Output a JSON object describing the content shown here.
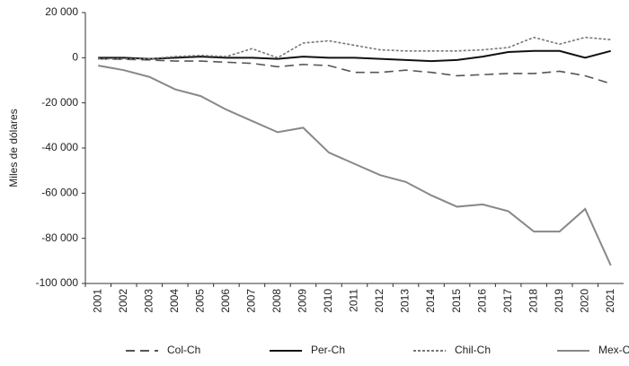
{
  "chart_data": {
    "type": "line",
    "y_label": "Miles de dólares",
    "categories": [
      "2001",
      "2002",
      "2003",
      "2004",
      "2005",
      "2006",
      "2007",
      "2008",
      "2009",
      "2010",
      "2011",
      "2012",
      "2013",
      "2014",
      "2015",
      "2016",
      "2017",
      "2018",
      "2019",
      "2020",
      "2021"
    ],
    "ylim": [
      -100000,
      20000
    ],
    "yticks": [
      {
        "value": 20000,
        "label": "20 000"
      },
      0,
      {
        "value": -20000,
        "label": "-20 000"
      },
      {
        "value": -40000,
        "label": "-40 000"
      },
      {
        "value": -60000,
        "label": "-60 000"
      },
      {
        "value": -80000,
        "label": "-80 000"
      },
      {
        "value": -100000,
        "label": "-100 000"
      }
    ],
    "legend": "bottom",
    "series": [
      {
        "name": "Col-Ch",
        "color": "#555555",
        "dash": "dashed",
        "values": [
          -500,
          -700,
          -1000,
          -1500,
          -1500,
          -2000,
          -2500,
          -4000,
          -3000,
          -3500,
          -6500,
          -6500,
          -5500,
          -6500,
          -8000,
          -7500,
          -7000,
          -7000,
          -6000,
          -8000,
          -11500
        ]
      },
      {
        "name": "Per-Ch",
        "color": "#111111",
        "dash": "solid",
        "values": [
          0,
          0,
          -500,
          0,
          500,
          0,
          0,
          -500,
          500,
          0,
          0,
          -500,
          -1000,
          -1500,
          -1000,
          500,
          2500,
          3000,
          3000,
          0,
          3000
        ]
      },
      {
        "name": "Chil-Ch",
        "color": "#777777",
        "dash": "dotted",
        "values": [
          -500,
          -500,
          -500,
          500,
          1000,
          500,
          4000,
          0,
          6500,
          7500,
          5500,
          3500,
          3000,
          3000,
          3000,
          3500,
          4500,
          9000,
          6000,
          9000,
          8000
        ]
      },
      {
        "name": "Mex-Ch",
        "color": "#888888",
        "dash": "solid",
        "values": [
          -3500,
          -5500,
          -8500,
          -14000,
          -17000,
          -23000,
          -28000,
          -33000,
          -31000,
          -42000,
          -47000,
          -52000,
          -55000,
          -61000,
          -66000,
          -65000,
          -68000,
          -77000,
          -77000,
          -67000,
          -92000
        ]
      }
    ]
  }
}
